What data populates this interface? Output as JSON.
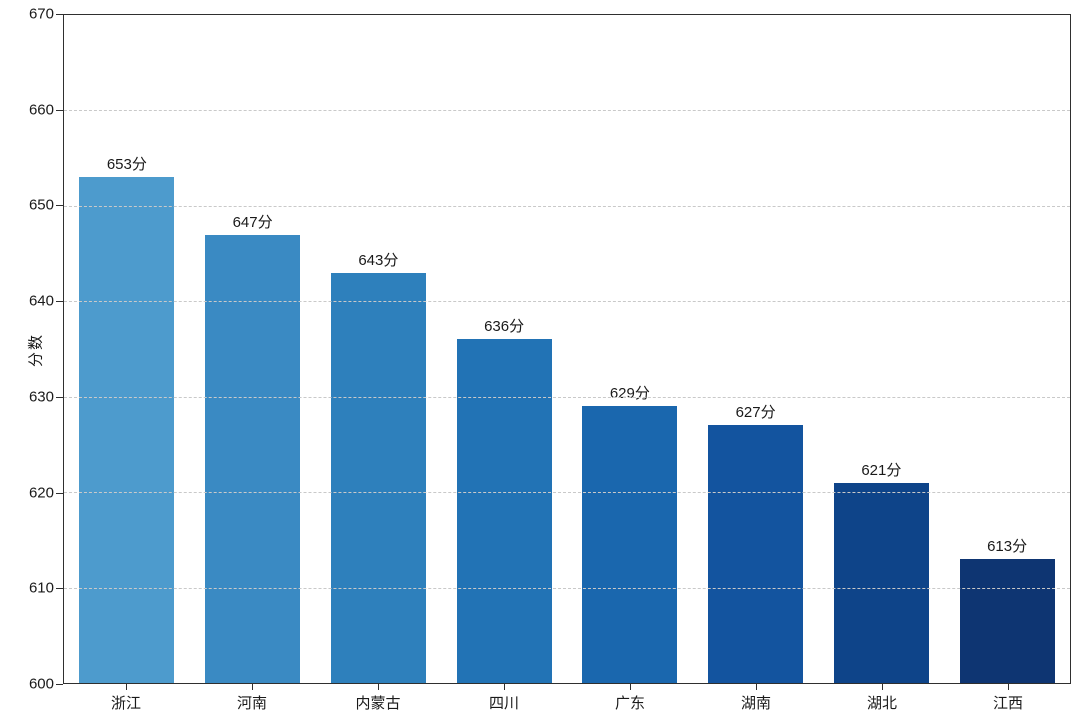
{
  "figure": {
    "background": "#ffffff",
    "axis_color": "#2f2f2f",
    "grid_color": "#c9c9c9",
    "text_color": "#1a1a1a"
  },
  "chart_data": {
    "type": "bar",
    "title": "",
    "xlabel": "",
    "ylabel": "分数",
    "categories": [
      "浙江",
      "河南",
      "内蒙古",
      "四川",
      "广东",
      "湖南",
      "湖北",
      "江西"
    ],
    "values": [
      653,
      647,
      643,
      636,
      629,
      627,
      621,
      613
    ],
    "value_labels": [
      "653分",
      "647分",
      "643分",
      "636分",
      "629分",
      "627分",
      "621分",
      "613分"
    ],
    "bar_colors": [
      "#4d9bcd",
      "#3a8ac3",
      "#2e80bc",
      "#2273b5",
      "#1a67ae",
      "#13549f",
      "#0e4489",
      "#0e3572"
    ],
    "ylim": [
      600,
      670
    ],
    "yticks": [
      600,
      610,
      620,
      630,
      640,
      650,
      660,
      670
    ],
    "grid": "horizontal-dashed-over-bars",
    "legend": "none"
  }
}
